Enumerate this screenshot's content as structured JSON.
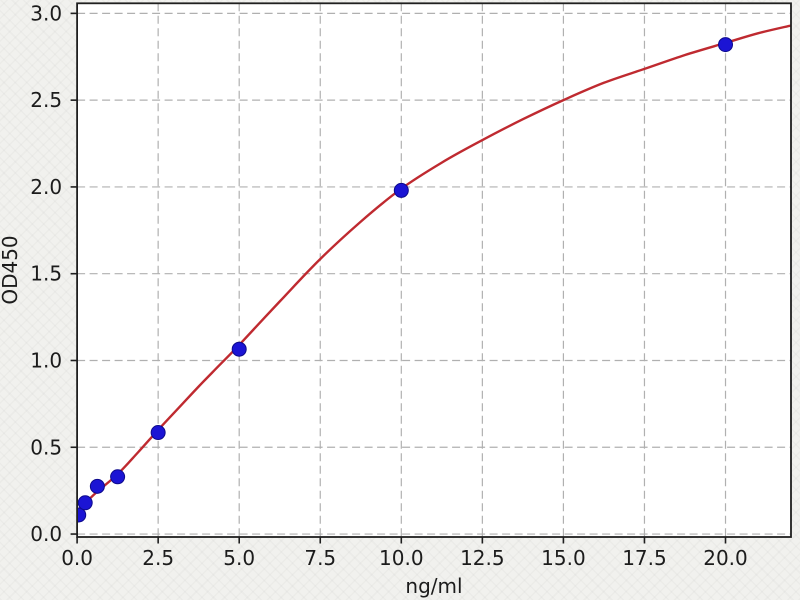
{
  "chart_data": {
    "type": "scatter",
    "title": "",
    "xlabel": "ng/ml",
    "ylabel": "OD450",
    "xlim": [
      0,
      22.02
    ],
    "ylim": [
      -0.017,
      3.058
    ],
    "grid": true,
    "grid_style": "dashed",
    "legend": "none",
    "x_ticks": [
      0,
      2.5,
      5,
      7.5,
      10,
      12.5,
      15,
      17.5,
      20
    ],
    "x_tick_labels": [
      "0.0",
      "2.5",
      "5.0",
      "7.5",
      "10.0",
      "12.5",
      "15.0",
      "17.5",
      "20.0"
    ],
    "y_ticks": [
      0,
      0.5,
      1,
      1.5,
      2,
      2.5,
      3
    ],
    "y_tick_labels": [
      "0.0",
      "0.5",
      "1.0",
      "1.5",
      "2.0",
      "2.5",
      "3.0"
    ],
    "points": [
      {
        "x": 0.05,
        "y": 0.11
      },
      {
        "x": 0.25,
        "y": 0.18
      },
      {
        "x": 0.625,
        "y": 0.275
      },
      {
        "x": 1.25,
        "y": 0.33
      },
      {
        "x": 2.5,
        "y": 0.585
      },
      {
        "x": 5,
        "y": 1.065
      },
      {
        "x": 10,
        "y": 1.98
      },
      {
        "x": 20,
        "y": 2.82
      }
    ],
    "fit_curve": [
      [
        0,
        0.135
      ],
      [
        0.3125,
        0.19
      ],
      [
        0.625,
        0.245
      ],
      [
        1.25,
        0.345
      ],
      [
        1.875,
        0.47
      ],
      [
        2.5,
        0.6
      ],
      [
        3.125,
        0.725
      ],
      [
        3.75,
        0.85
      ],
      [
        4.375,
        0.97
      ],
      [
        5,
        1.09
      ],
      [
        6.25,
        1.34
      ],
      [
        7.5,
        1.585
      ],
      [
        8.75,
        1.8
      ],
      [
        10,
        1.99
      ],
      [
        11.25,
        2.14
      ],
      [
        12.5,
        2.27
      ],
      [
        13.75,
        2.39
      ],
      [
        15,
        2.5
      ],
      [
        16.25,
        2.6
      ],
      [
        17.5,
        2.68
      ],
      [
        18.75,
        2.76
      ],
      [
        20,
        2.83
      ],
      [
        21,
        2.885
      ],
      [
        22.02,
        2.93
      ]
    ],
    "style": {
      "figure_background": "#f1f1ee",
      "plot_background": "#ffffff",
      "grid_color": "#b0b0b0",
      "spine_color": "#1f1f1f",
      "text_color": "#1c1c1c",
      "curve_color": "#bf2a30",
      "marker_fill": "#1b14d4",
      "marker_edge": "#0d0a8c"
    }
  }
}
